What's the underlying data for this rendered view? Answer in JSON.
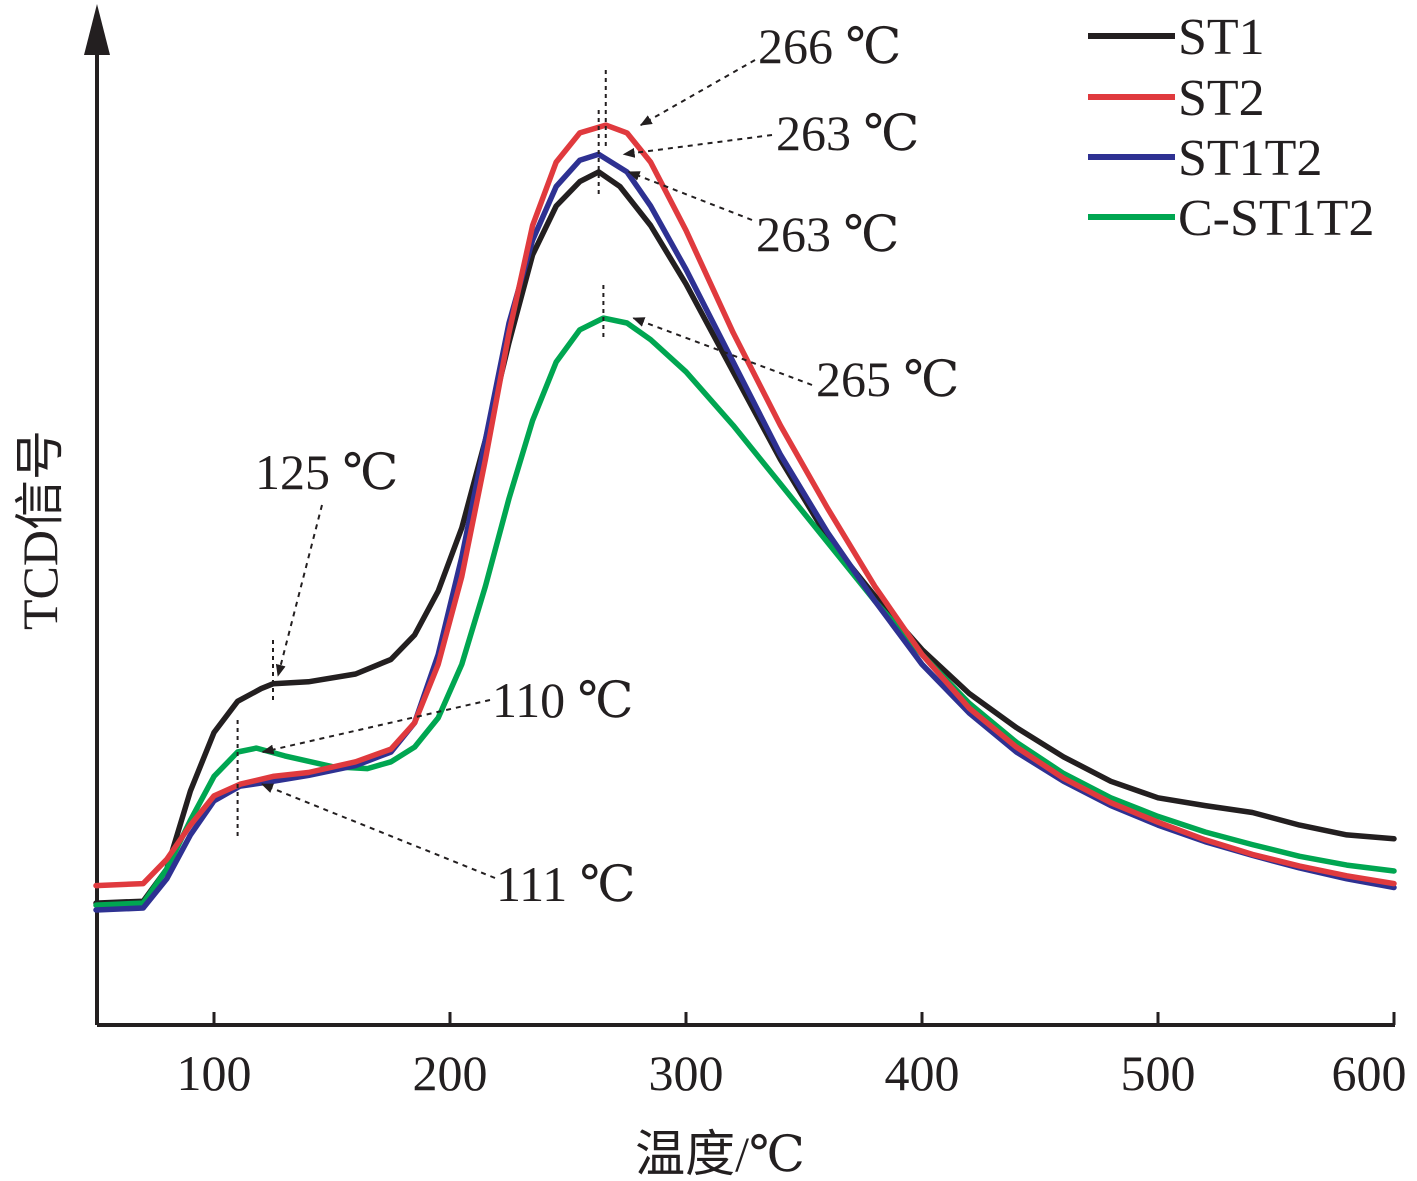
{
  "chart_data": {
    "type": "line",
    "xlabel": "温度/℃",
    "ylabel": "TCD信号",
    "xlim": [
      50,
      600
    ],
    "ylim": [
      0,
      100
    ],
    "y_ticks_shown": false,
    "x_ticks": [
      100,
      200,
      300,
      400,
      500,
      600
    ],
    "x_tick_labels": [
      "100",
      "200",
      "300",
      "400",
      "500",
      "600"
    ],
    "grid": false,
    "legend_position": "top-right",
    "series": [
      {
        "name": "ST1",
        "color": "#231f20",
        "points": [
          [
            50,
            12.5
          ],
          [
            70,
            12.7
          ],
          [
            80,
            16
          ],
          [
            90,
            24
          ],
          [
            100,
            30
          ],
          [
            110,
            33.2
          ],
          [
            120,
            34.5
          ],
          [
            125,
            35
          ],
          [
            140,
            35.2
          ],
          [
            160,
            36
          ],
          [
            175,
            37.5
          ],
          [
            185,
            40
          ],
          [
            195,
            44.5
          ],
          [
            205,
            51
          ],
          [
            215,
            60
          ],
          [
            225,
            70
          ],
          [
            235,
            79
          ],
          [
            245,
            84
          ],
          [
            255,
            86.5
          ],
          [
            263,
            87.5
          ],
          [
            272,
            86
          ],
          [
            285,
            82
          ],
          [
            300,
            76
          ],
          [
            320,
            67
          ],
          [
            340,
            58
          ],
          [
            360,
            50
          ],
          [
            380,
            44
          ],
          [
            400,
            38.5
          ],
          [
            420,
            34
          ],
          [
            440,
            30.5
          ],
          [
            460,
            27.5
          ],
          [
            480,
            25
          ],
          [
            500,
            23.3
          ],
          [
            520,
            22.5
          ],
          [
            540,
            21.8
          ],
          [
            560,
            20.5
          ],
          [
            580,
            19.5
          ],
          [
            600,
            19.1
          ]
        ]
      },
      {
        "name": "ST2",
        "color": "#e03a3e",
        "points": [
          [
            50,
            14.3
          ],
          [
            70,
            14.5
          ],
          [
            80,
            17
          ],
          [
            90,
            20.5
          ],
          [
            100,
            23.5
          ],
          [
            111,
            24.7
          ],
          [
            125,
            25.5
          ],
          [
            140,
            25.9
          ],
          [
            160,
            27
          ],
          [
            175,
            28.3
          ],
          [
            185,
            31
          ],
          [
            195,
            37
          ],
          [
            205,
            46
          ],
          [
            215,
            58
          ],
          [
            225,
            71
          ],
          [
            235,
            82
          ],
          [
            245,
            88.5
          ],
          [
            255,
            91.5
          ],
          [
            266,
            92.3
          ],
          [
            275,
            91.5
          ],
          [
            285,
            88.5
          ],
          [
            300,
            81.5
          ],
          [
            320,
            71
          ],
          [
            340,
            61.5
          ],
          [
            360,
            53
          ],
          [
            380,
            45
          ],
          [
            400,
            38
          ],
          [
            420,
            32.5
          ],
          [
            440,
            28.5
          ],
          [
            460,
            25.3
          ],
          [
            480,
            22.8
          ],
          [
            500,
            20.8
          ],
          [
            520,
            19
          ],
          [
            540,
            17.5
          ],
          [
            560,
            16.3
          ],
          [
            580,
            15.3
          ],
          [
            600,
            14.5
          ]
        ]
      },
      {
        "name": "ST1T2",
        "color": "#2e3192",
        "points": [
          [
            50,
            11.8
          ],
          [
            70,
            12
          ],
          [
            80,
            15
          ],
          [
            90,
            19.5
          ],
          [
            100,
            23
          ],
          [
            111,
            24.5
          ],
          [
            125,
            25
          ],
          [
            140,
            25.6
          ],
          [
            160,
            26.6
          ],
          [
            175,
            28
          ],
          [
            185,
            31
          ],
          [
            195,
            38
          ],
          [
            205,
            48
          ],
          [
            215,
            60
          ],
          [
            225,
            72
          ],
          [
            235,
            80.5
          ],
          [
            245,
            86
          ],
          [
            255,
            88.7
          ],
          [
            263,
            89.3
          ],
          [
            275,
            87.5
          ],
          [
            285,
            84
          ],
          [
            300,
            77.5
          ],
          [
            320,
            68
          ],
          [
            340,
            58.5
          ],
          [
            360,
            50.5
          ],
          [
            380,
            43.5
          ],
          [
            400,
            37
          ],
          [
            420,
            32
          ],
          [
            440,
            28
          ],
          [
            460,
            25
          ],
          [
            480,
            22.5
          ],
          [
            500,
            20.5
          ],
          [
            520,
            18.8
          ],
          [
            540,
            17.4
          ],
          [
            560,
            16.1
          ],
          [
            580,
            15
          ],
          [
            600,
            14.1
          ]
        ]
      },
      {
        "name": "C-ST1T2",
        "color": "#00a651",
        "points": [
          [
            50,
            12.3
          ],
          [
            70,
            12.5
          ],
          [
            80,
            16
          ],
          [
            90,
            21
          ],
          [
            100,
            25.5
          ],
          [
            110,
            28
          ],
          [
            118,
            28.4
          ],
          [
            130,
            27.6
          ],
          [
            150,
            26.5
          ],
          [
            165,
            26.3
          ],
          [
            175,
            27
          ],
          [
            185,
            28.5
          ],
          [
            195,
            31.5
          ],
          [
            205,
            37
          ],
          [
            215,
            45
          ],
          [
            225,
            54
          ],
          [
            235,
            62
          ],
          [
            245,
            68
          ],
          [
            255,
            71.3
          ],
          [
            265,
            72.5
          ],
          [
            275,
            72
          ],
          [
            285,
            70.3
          ],
          [
            300,
            67
          ],
          [
            320,
            61.5
          ],
          [
            340,
            55.5
          ],
          [
            360,
            49.5
          ],
          [
            380,
            43.5
          ],
          [
            400,
            38
          ],
          [
            420,
            33
          ],
          [
            440,
            29
          ],
          [
            460,
            25.8
          ],
          [
            480,
            23.3
          ],
          [
            500,
            21.4
          ],
          [
            520,
            19.8
          ],
          [
            540,
            18.5
          ],
          [
            560,
            17.3
          ],
          [
            580,
            16.4
          ],
          [
            600,
            15.8
          ]
        ]
      }
    ],
    "annotations": [
      {
        "text": "266 ℃",
        "x": 266,
        "y": 92.3
      },
      {
        "text": "263 ℃",
        "x": 263,
        "y": 89.3
      },
      {
        "text": "263 ℃",
        "x": 263,
        "y": 87.5
      },
      {
        "text": "265 ℃",
        "x": 265,
        "y": 72.5
      },
      {
        "text": "125 ℃",
        "x": 125,
        "y": 35
      },
      {
        "text": "110 ℃",
        "x": 110,
        "y": 28
      },
      {
        "text": "111 ℃",
        "x": 111,
        "y": 24.7
      }
    ]
  }
}
